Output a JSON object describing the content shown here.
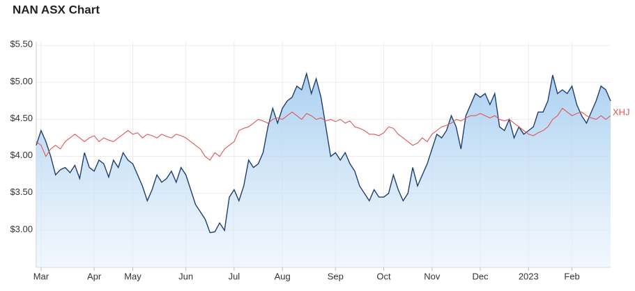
{
  "chart_data": {
    "type": "line",
    "title": "NAN ASX Chart",
    "categories": [
      null,
      "Mar",
      null,
      null,
      null,
      null,
      null,
      null,
      null,
      null,
      null,
      null,
      "Apr",
      null,
      null,
      null,
      null,
      null,
      null,
      null,
      "May",
      null,
      null,
      null,
      null,
      null,
      null,
      null,
      null,
      null,
      null,
      "Jun",
      null,
      null,
      null,
      null,
      null,
      null,
      null,
      null,
      null,
      "Jul",
      null,
      null,
      null,
      null,
      null,
      null,
      null,
      null,
      null,
      "Aug",
      null,
      null,
      null,
      null,
      null,
      null,
      null,
      null,
      null,
      null,
      "Sep",
      null,
      null,
      null,
      null,
      null,
      null,
      null,
      null,
      null,
      "Oct",
      null,
      null,
      null,
      null,
      null,
      null,
      null,
      null,
      null,
      "Nov",
      null,
      null,
      null,
      null,
      null,
      null,
      null,
      null,
      null,
      "Dec",
      null,
      null,
      null,
      null,
      null,
      null,
      null,
      null,
      null,
      "2023",
      null,
      null,
      null,
      null,
      null,
      null,
      null,
      null,
      "Feb",
      null,
      null,
      null,
      null,
      null,
      null,
      null,
      null
    ],
    "series": [
      {
        "color": "#1f3d6e",
        "area": true,
        "values": [
          4.15,
          4.35,
          4.2,
          4.0,
          3.75,
          3.82,
          3.85,
          3.78,
          3.88,
          3.7,
          4.05,
          3.85,
          3.8,
          3.95,
          3.9,
          3.72,
          3.95,
          3.85,
          4.05,
          3.95,
          3.9,
          3.75,
          3.6,
          3.4,
          3.55,
          3.75,
          3.65,
          3.7,
          3.8,
          3.65,
          3.85,
          3.75,
          3.55,
          3.35,
          3.25,
          3.15,
          2.97,
          2.98,
          3.1,
          3.0,
          3.45,
          3.55,
          3.4,
          3.6,
          3.95,
          3.85,
          3.9,
          4.05,
          4.4,
          4.65,
          4.45,
          4.65,
          4.75,
          4.8,
          4.95,
          4.9,
          5.12,
          4.85,
          5.05,
          4.8,
          4.4,
          4.0,
          4.05,
          3.95,
          4.05,
          3.9,
          3.8,
          3.6,
          3.5,
          3.4,
          3.55,
          3.45,
          3.45,
          3.5,
          3.75,
          3.55,
          3.4,
          3.5,
          3.85,
          3.6,
          3.75,
          3.9,
          4.1,
          4.3,
          4.25,
          4.35,
          4.55,
          4.4,
          4.1,
          4.55,
          4.7,
          4.85,
          4.8,
          4.85,
          4.7,
          4.85,
          4.4,
          4.35,
          4.5,
          4.25,
          4.4,
          4.3,
          4.35,
          4.4,
          4.6,
          4.6,
          4.75,
          5.1,
          4.85,
          4.9,
          4.85,
          4.95,
          4.7,
          4.55,
          4.45,
          4.6,
          4.75,
          4.95,
          4.9,
          4.75
        ]
      },
      {
        "name": "XHJ",
        "color": "#e05555",
        "values": [
          4.2,
          4.15,
          4.0,
          4.1,
          4.15,
          4.1,
          4.2,
          4.25,
          4.3,
          4.25,
          4.2,
          4.25,
          4.28,
          4.2,
          4.25,
          4.22,
          4.2,
          4.25,
          4.3,
          4.35,
          4.3,
          4.32,
          4.25,
          4.3,
          4.28,
          4.25,
          4.3,
          4.27,
          4.25,
          4.3,
          4.28,
          4.25,
          4.2,
          4.15,
          4.1,
          4.0,
          3.95,
          4.05,
          4.0,
          4.1,
          4.15,
          4.2,
          4.35,
          4.38,
          4.4,
          4.45,
          4.5,
          4.48,
          4.45,
          4.5,
          4.52,
          4.5,
          4.55,
          4.6,
          4.55,
          4.5,
          4.58,
          4.55,
          4.5,
          4.52,
          4.48,
          4.5,
          4.47,
          4.5,
          4.45,
          4.48,
          4.4,
          4.38,
          4.35,
          4.3,
          4.3,
          4.28,
          4.32,
          4.4,
          4.38,
          4.3,
          4.25,
          4.2,
          4.15,
          4.18,
          4.25,
          4.2,
          4.3,
          4.35,
          4.4,
          4.42,
          4.45,
          4.5,
          4.48,
          4.52,
          4.55,
          4.55,
          4.58,
          4.55,
          4.52,
          4.55,
          4.5,
          4.48,
          4.5,
          4.45,
          4.4,
          4.35,
          4.3,
          4.28,
          4.32,
          4.35,
          4.4,
          4.5,
          4.55,
          4.65,
          4.6,
          4.55,
          4.58,
          4.6,
          4.55,
          4.52,
          4.5,
          4.55,
          4.5,
          4.55
        ]
      }
    ],
    "ylim": [
      2.5,
      5.55
    ],
    "yticks": [
      {
        "value": 3,
        "label": "$3.00"
      },
      {
        "value": 3.5,
        "label": "$3.50"
      },
      {
        "value": 4,
        "label": "$4.00"
      },
      {
        "value": 4.5,
        "label": "$4.50"
      },
      {
        "value": 5,
        "label": "$5.00"
      },
      {
        "value": 5.5,
        "label": "$5.50"
      }
    ],
    "grid": true
  }
}
